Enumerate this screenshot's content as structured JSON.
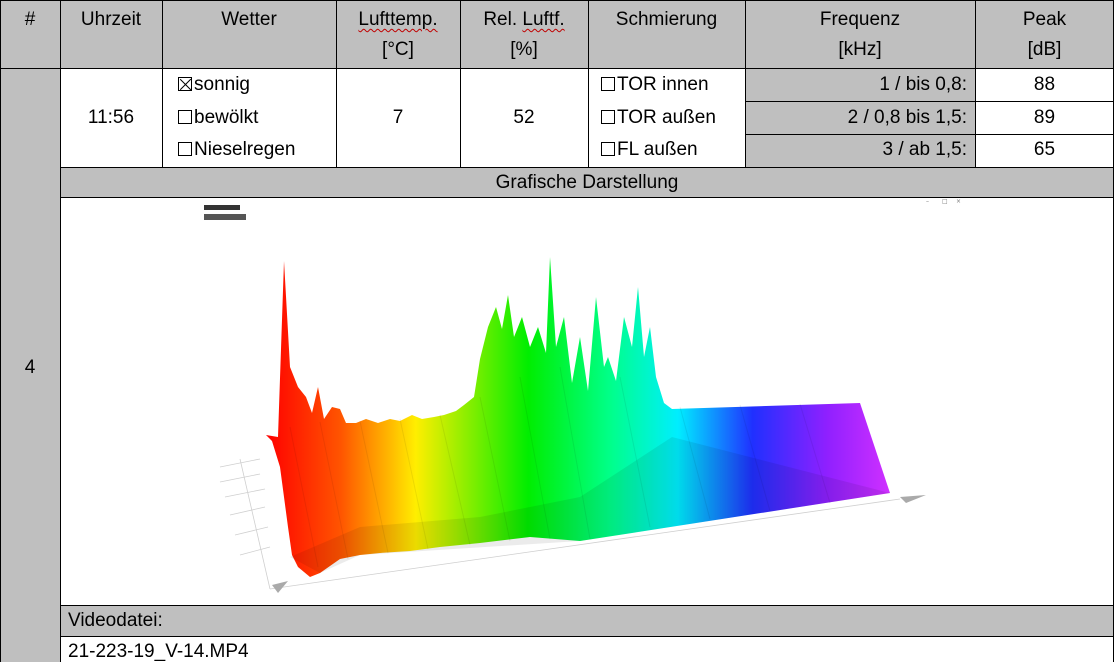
{
  "header": {
    "col_number": "#",
    "col_time": "Uhrzeit",
    "col_weather": "Wetter",
    "col_air_temp": "Lufttemp.",
    "col_air_temp_unit": "[°C]",
    "col_humidity_prefix": "Rel.",
    "col_humidity_word": "Luftf.",
    "col_humidity_unit": "[%]",
    "col_lubrication": "Schmierung",
    "col_frequency": "Frequenz",
    "col_frequency_unit": "[kHz]",
    "col_peak": "Peak",
    "col_peak_unit": "[dB]"
  },
  "entry": {
    "number": "4",
    "time": "11:56",
    "weather": [
      {
        "label": "sonnig",
        "checked": true
      },
      {
        "label": "bewölkt",
        "checked": false
      },
      {
        "label": "Nieselregen",
        "checked": false
      }
    ],
    "air_temp": "7",
    "humidity": "52",
    "lubrication": [
      {
        "label": "TOR innen",
        "checked": false
      },
      {
        "label": "TOR außen",
        "checked": false
      },
      {
        "label": "FL außen",
        "checked": false
      }
    ],
    "frequency_bands": [
      {
        "band": "1 / bis 0,8:",
        "peak": "88"
      },
      {
        "band": "2 / 0,8 bis 1,5:",
        "peak": "89"
      },
      {
        "band": "3 / ab 1,5:",
        "peak": "65"
      }
    ]
  },
  "graphic_section": {
    "title": "Grafische Darstellung"
  },
  "video": {
    "label": "Videodatei:",
    "filename": "21-223-19_V-14.MP4"
  },
  "colors": {
    "header_grey": "#bfbfbf",
    "spellcheck_underline": "#c00000"
  }
}
